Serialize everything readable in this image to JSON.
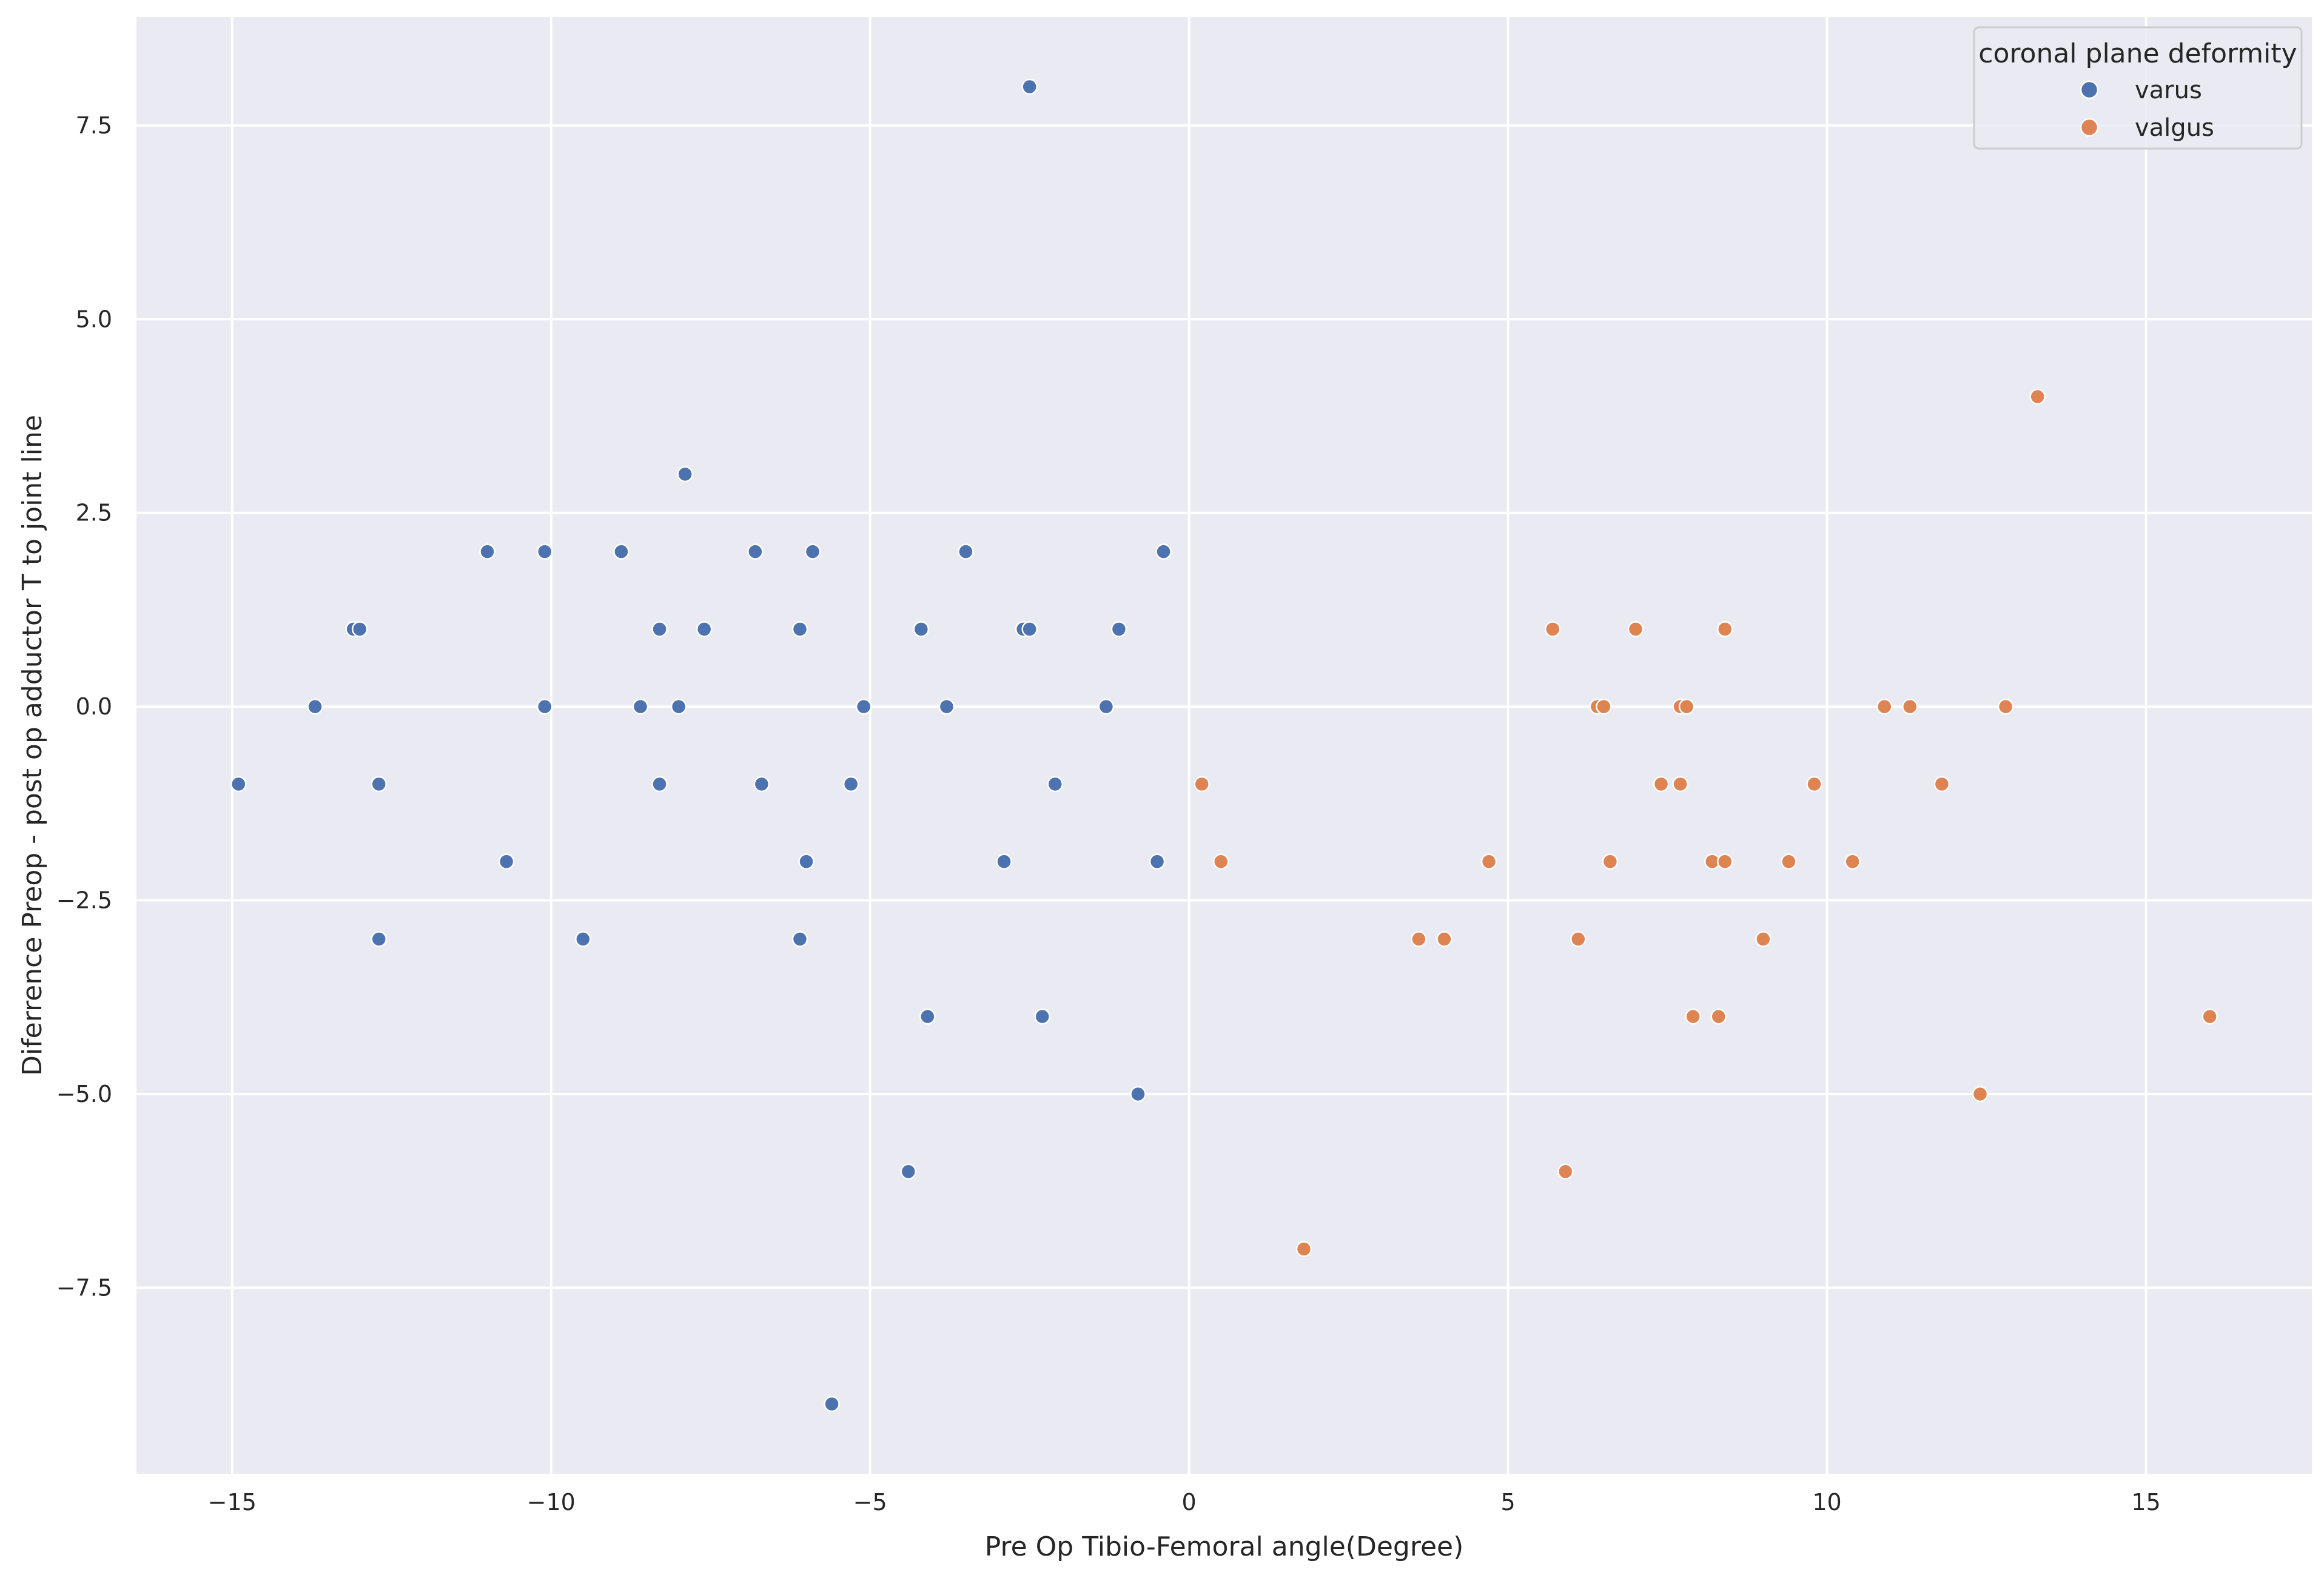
{
  "chart_data": {
    "type": "scatter",
    "title": "",
    "xlabel": "Pre Op Tibio-Femoral angle(Degree)",
    "ylabel": "Diferrence Preop - post op adductor T to joint line",
    "xlim": [
      -16.5,
      17.6
    ],
    "ylim": [
      -9.9,
      8.9
    ],
    "xticks": [
      -15,
      -10,
      -5,
      0,
      5,
      10,
      15
    ],
    "xtick_labels": [
      "−15",
      "−10",
      "−5",
      "0",
      "5",
      "10",
      "15"
    ],
    "yticks": [
      7.5,
      5.0,
      2.5,
      0.0,
      -2.5,
      -5.0,
      -7.5
    ],
    "ytick_labels": [
      "7.5",
      "5.0",
      "2.5",
      "0.0",
      "−2.5",
      "−5.0",
      "−7.5"
    ],
    "grid": true,
    "legend": {
      "title": "coronal plane deformity",
      "placement": "top-right"
    },
    "series": [
      {
        "name": "varus",
        "color": "#4c72b0",
        "points": [
          [
            -2.5,
            8
          ],
          [
            -7.9,
            3
          ],
          [
            -11,
            2
          ],
          [
            -10.1,
            2
          ],
          [
            -8.9,
            2
          ],
          [
            -6.8,
            2
          ],
          [
            -5.9,
            2
          ],
          [
            -3.5,
            2
          ],
          [
            -0.4,
            2
          ],
          [
            -13.1,
            1
          ],
          [
            -13,
            1
          ],
          [
            -8.3,
            1
          ],
          [
            -7.6,
            1
          ],
          [
            -6.1,
            1
          ],
          [
            -4.2,
            1
          ],
          [
            -2.6,
            1
          ],
          [
            -2.5,
            1
          ],
          [
            -1.1,
            1
          ],
          [
            -13.7,
            0
          ],
          [
            -10.1,
            0
          ],
          [
            -8.6,
            0
          ],
          [
            -8,
            0
          ],
          [
            -5.1,
            0
          ],
          [
            -3.8,
            0
          ],
          [
            -1.3,
            0
          ],
          [
            -14.9,
            -1
          ],
          [
            -12.7,
            -1
          ],
          [
            -8.3,
            -1
          ],
          [
            -6.7,
            -1
          ],
          [
            -5.3,
            -1
          ],
          [
            -2.1,
            -1
          ],
          [
            -10.7,
            -2
          ],
          [
            -6,
            -2
          ],
          [
            -2.9,
            -2
          ],
          [
            -0.5,
            -2
          ],
          [
            -12.7,
            -3
          ],
          [
            -9.5,
            -3
          ],
          [
            -6.1,
            -3
          ],
          [
            -4.1,
            -4
          ],
          [
            -2.3,
            -4
          ],
          [
            -0.8,
            -5
          ],
          [
            -4.4,
            -6
          ],
          [
            -5.6,
            -9
          ]
        ]
      },
      {
        "name": "valgus",
        "color": "#dd8452",
        "points": [
          [
            13.3,
            4
          ],
          [
            5.7,
            1
          ],
          [
            7,
            1
          ],
          [
            8.4,
            1
          ],
          [
            6.4,
            0
          ],
          [
            6.5,
            0
          ],
          [
            7.7,
            0
          ],
          [
            7.8,
            0
          ],
          [
            10.9,
            0
          ],
          [
            11.3,
            0
          ],
          [
            12.8,
            0
          ],
          [
            0.2,
            -1
          ],
          [
            7.4,
            -1
          ],
          [
            7.7,
            -1
          ],
          [
            9.8,
            -1
          ],
          [
            11.8,
            -1
          ],
          [
            0.5,
            -2
          ],
          [
            4.7,
            -2
          ],
          [
            6.6,
            -2
          ],
          [
            8.2,
            -2
          ],
          [
            8.4,
            -2
          ],
          [
            9.4,
            -2
          ],
          [
            10.4,
            -2
          ],
          [
            3.6,
            -3
          ],
          [
            4,
            -3
          ],
          [
            6.1,
            -3
          ],
          [
            9,
            -3
          ],
          [
            7.9,
            -4
          ],
          [
            8.3,
            -4
          ],
          [
            16,
            -4
          ],
          [
            12.4,
            -5
          ],
          [
            5.9,
            -6
          ],
          [
            1.8,
            -7
          ]
        ]
      }
    ]
  }
}
